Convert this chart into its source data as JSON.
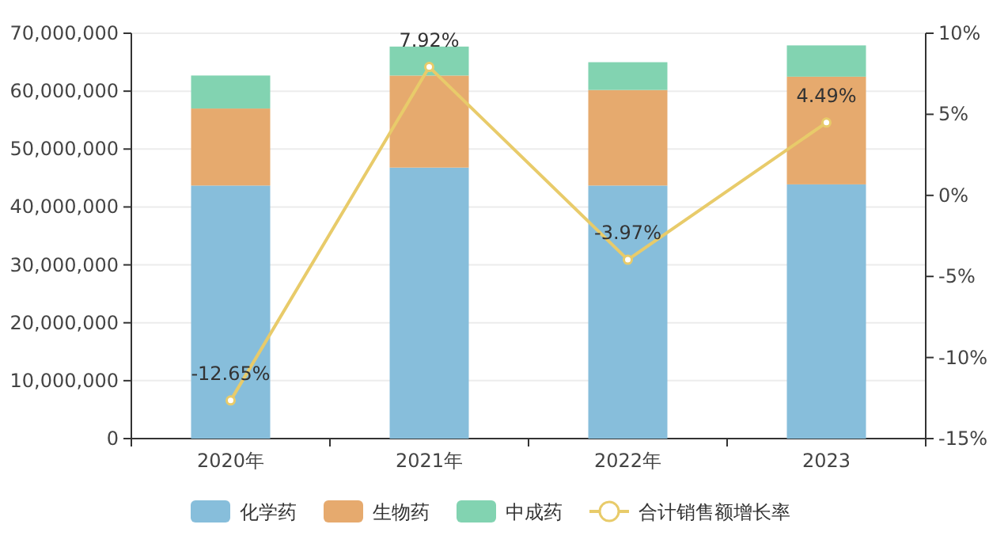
{
  "chart_data": {
    "type": "bar",
    "stacked": true,
    "categories": [
      "2020年",
      "2021年",
      "2022年",
      "2023"
    ],
    "series": [
      {
        "name": "化学药",
        "color": "#87bedb",
        "values": [
          43700000,
          46800000,
          43700000,
          43900000
        ]
      },
      {
        "name": "生物药",
        "color": "#e6aa6e",
        "values": [
          13300000,
          15900000,
          16500000,
          18600000
        ]
      },
      {
        "name": "中成药",
        "color": "#82d3b1",
        "values": [
          5700000,
          5000000,
          4800000,
          5400000
        ]
      },
      {
        "name": "合计销售额增长率",
        "type": "line",
        "axis": "y2",
        "color": "#e8cb6a",
        "marker": "circle",
        "values": [
          -12.65,
          7.92,
          -3.97,
          4.49
        ],
        "value_labels": [
          "-12.65%",
          "7.92%",
          "-3.97%",
          "4.49%"
        ]
      }
    ],
    "ylim": [
      0,
      70000000
    ],
    "yticks": [
      {
        "value": 0,
        "label": "0"
      },
      {
        "value": 10000000,
        "label": "10,000,000"
      },
      {
        "value": 20000000,
        "label": "20,000,000"
      },
      {
        "value": 30000000,
        "label": "30,000,000"
      },
      {
        "value": 40000000,
        "label": "40,000,000"
      },
      {
        "value": 50000000,
        "label": "50,000,000"
      },
      {
        "value": 60000000,
        "label": "60,000,000"
      },
      {
        "value": 70000000,
        "label": "70,000,000"
      }
    ],
    "y2lim": [
      -15,
      10
    ],
    "y2ticks": [
      {
        "value": -15,
        "label": "-15%"
      },
      {
        "value": -10,
        "label": "-10%"
      },
      {
        "value": -5,
        "label": "-5%"
      },
      {
        "value": 0,
        "label": "0%"
      },
      {
        "value": 5,
        "label": "5%"
      },
      {
        "value": 10,
        "label": "10%"
      }
    ],
    "grid": "y",
    "legend": "bottom"
  }
}
